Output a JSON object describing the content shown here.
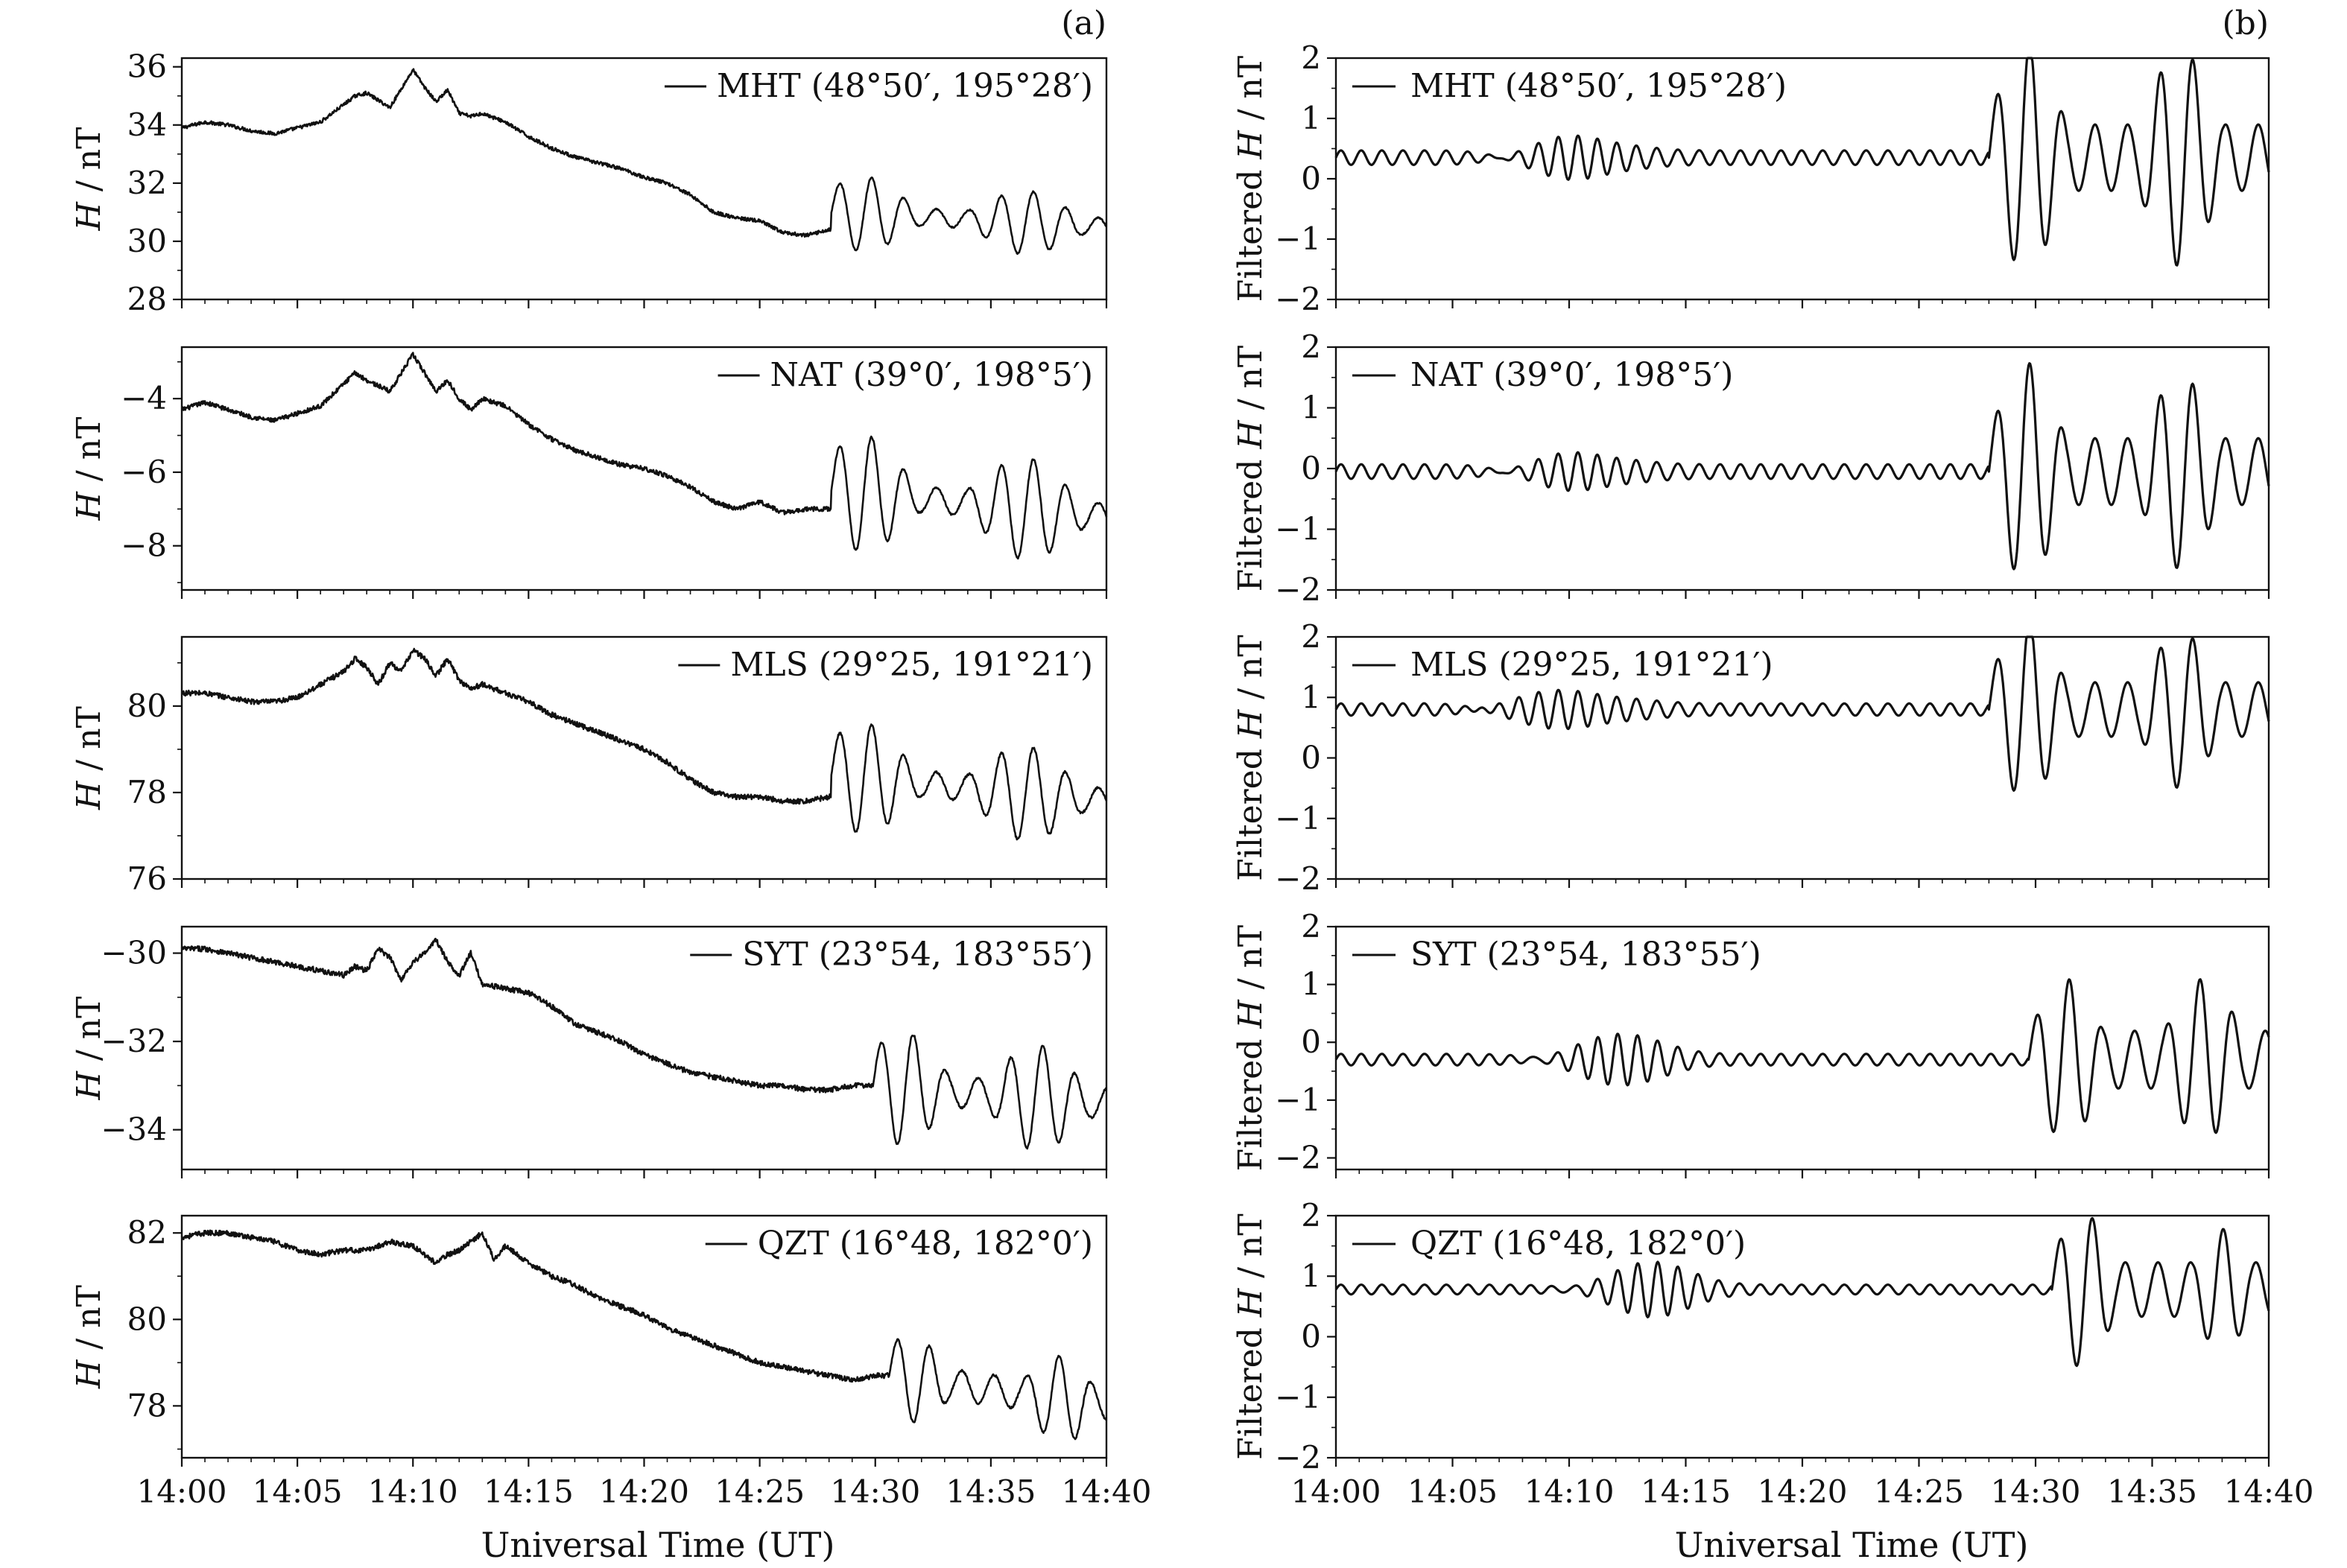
{
  "figure": {
    "panel_a_label": "(a)",
    "panel_b_label": "(b)",
    "x_axis_title": "Universal Time (UT)",
    "x_tick_labels": [
      "14:00",
      "14:05",
      "14:10",
      "14:15",
      "14:20",
      "14:25",
      "14:30",
      "14:35",
      "14:40"
    ]
  },
  "chart_data": [
    {
      "type": "line",
      "panel": "a",
      "station": "MHT",
      "legend": "MHT (48°50′, 195°28′)",
      "ylabel_italic": "H",
      "ylabel_rest": " / nT",
      "xlim": [
        0,
        40
      ],
      "ylim": [
        28,
        36.3
      ],
      "yticks": [
        28,
        30,
        32,
        34,
        36
      ],
      "ytick_labels": [
        "28",
        "30",
        "32",
        "34",
        "36"
      ],
      "x": [
        0,
        1,
        2,
        3,
        4,
        5,
        6,
        7,
        7.5,
        8,
        9,
        10,
        10.5,
        11,
        11.5,
        12,
        12.5,
        13,
        14,
        15,
        16,
        17,
        18,
        19,
        20,
        21,
        22,
        23,
        24,
        25,
        26,
        27,
        28
      ],
      "y": [
        33.9,
        34.1,
        34.0,
        33.8,
        33.7,
        33.9,
        34.1,
        34.7,
        35.0,
        35.1,
        34.6,
        35.9,
        35.3,
        34.8,
        35.2,
        34.4,
        34.3,
        34.4,
        34.1,
        33.6,
        33.2,
        32.9,
        32.7,
        32.5,
        32.2,
        32.0,
        31.6,
        31.0,
        30.8,
        30.7,
        30.3,
        30.2,
        30.4
      ],
      "osc": {
        "start": 28.1,
        "period": 1.4,
        "base_start": 31.0,
        "base_end": 30.5,
        "bursts": [
          {
            "center": 29.5,
            "width": 2.0,
            "amp": 1.3
          },
          {
            "center": 36.5,
            "width": 2.2,
            "amp": 1.1
          }
        ],
        "min_amp": 0.3
      }
    },
    {
      "type": "line",
      "panel": "a",
      "station": "NAT",
      "legend": "NAT (39°0′, 198°5′)",
      "ylabel_italic": "H",
      "ylabel_rest": " / nT",
      "xlim": [
        0,
        40
      ],
      "ylim": [
        -9.2,
        -2.6
      ],
      "yticks": [
        -8,
        -6,
        -4
      ],
      "ytick_labels": [
        "−8",
        "−6",
        "−4"
      ],
      "x": [
        0,
        1,
        2,
        3,
        4,
        5,
        6,
        7,
        7.5,
        8,
        9,
        10,
        10.5,
        11,
        11.5,
        12,
        12.5,
        13,
        14,
        15,
        16,
        17,
        18,
        19,
        20,
        21,
        22,
        23,
        24,
        25,
        26,
        27,
        28
      ],
      "y": [
        -4.3,
        -4.1,
        -4.3,
        -4.5,
        -4.6,
        -4.4,
        -4.2,
        -3.6,
        -3.3,
        -3.5,
        -3.8,
        -2.8,
        -3.3,
        -3.8,
        -3.5,
        -4.0,
        -4.3,
        -4.0,
        -4.2,
        -4.7,
        -5.1,
        -5.4,
        -5.6,
        -5.8,
        -5.9,
        -6.1,
        -6.4,
        -6.8,
        -7.0,
        -6.8,
        -7.1,
        -7.0,
        -7.0
      ],
      "osc": {
        "start": 28.1,
        "period": 1.4,
        "base_start": -6.5,
        "base_end": -7.2,
        "bursts": [
          {
            "center": 29.5,
            "width": 2.0,
            "amp": 1.6
          },
          {
            "center": 36.5,
            "width": 2.2,
            "amp": 1.4
          }
        ],
        "min_amp": 0.35
      }
    },
    {
      "type": "line",
      "panel": "a",
      "station": "MLS",
      "legend": "MLS (29°25, 191°21′)",
      "ylabel_italic": "H",
      "ylabel_rest": " / nT",
      "xlim": [
        0,
        40
      ],
      "ylim": [
        76,
        81.6
      ],
      "yticks": [
        76,
        78,
        80
      ],
      "ytick_labels": [
        "76",
        "78",
        "80"
      ],
      "x": [
        0,
        1,
        2,
        3,
        4,
        5,
        6,
        7,
        7.5,
        8,
        8.5,
        9,
        9.5,
        10,
        10.5,
        11,
        11.5,
        12,
        12.5,
        13,
        14,
        15,
        16,
        17,
        18,
        19,
        20,
        21,
        22,
        23,
        24,
        25,
        26,
        27,
        28
      ],
      "y": [
        80.3,
        80.3,
        80.2,
        80.1,
        80.1,
        80.2,
        80.5,
        80.8,
        81.1,
        80.9,
        80.5,
        81.0,
        80.8,
        81.3,
        81.1,
        80.7,
        81.1,
        80.6,
        80.4,
        80.5,
        80.3,
        80.1,
        79.8,
        79.6,
        79.4,
        79.2,
        79.0,
        78.7,
        78.3,
        78.0,
        77.9,
        77.9,
        77.8,
        77.8,
        77.9
      ],
      "osc": {
        "start": 28.1,
        "period": 1.4,
        "base_start": 78.4,
        "base_end": 77.8,
        "bursts": [
          {
            "center": 29.5,
            "width": 2.0,
            "amp": 1.3
          },
          {
            "center": 36.5,
            "width": 2.2,
            "amp": 1.1
          }
        ],
        "min_amp": 0.3
      }
    },
    {
      "type": "line",
      "panel": "a",
      "station": "SYT",
      "legend": "SYT (23°54, 183°55′)",
      "ylabel_italic": "H",
      "ylabel_rest": " / nT",
      "xlim": [
        0,
        40
      ],
      "ylim": [
        -34.9,
        -29.4
      ],
      "yticks": [
        -34,
        -32,
        -30
      ],
      "ytick_labels": [
        "−34",
        "−32",
        "−30"
      ],
      "x": [
        0,
        1,
        2,
        3,
        4,
        5,
        6,
        7,
        7.5,
        8,
        8.5,
        9,
        9.5,
        10,
        10.5,
        11,
        11.5,
        12,
        12.5,
        13,
        14,
        15,
        16,
        17,
        18,
        19,
        20,
        21,
        22,
        23,
        24,
        25,
        26,
        27,
        28,
        29,
        30
      ],
      "y": [
        -29.9,
        -29.9,
        -30.0,
        -30.1,
        -30.2,
        -30.3,
        -30.4,
        -30.5,
        -30.3,
        -30.4,
        -29.9,
        -30.1,
        -30.6,
        -30.2,
        -30.0,
        -29.7,
        -30.2,
        -30.5,
        -30.0,
        -30.7,
        -30.8,
        -30.9,
        -31.2,
        -31.6,
        -31.8,
        -32.0,
        -32.3,
        -32.5,
        -32.7,
        -32.8,
        -32.9,
        -33.0,
        -33.0,
        -33.1,
        -33.1,
        -33.0,
        -33.0
      ],
      "osc": {
        "start": 29.9,
        "period": 1.4,
        "base_start": -33.0,
        "base_end": -33.4,
        "bursts": [
          {
            "center": 31.2,
            "width": 1.8,
            "amp": 1.3
          },
          {
            "center": 37.0,
            "width": 2.0,
            "amp": 1.2
          }
        ],
        "min_amp": 0.35
      }
    },
    {
      "type": "line",
      "panel": "a",
      "station": "QZT",
      "legend": "QZT (16°48, 182°0′)",
      "ylabel_italic": "H",
      "ylabel_rest": " / nT",
      "xlim": [
        0,
        40
      ],
      "ylim": [
        76.8,
        82.4
      ],
      "yticks": [
        78,
        80,
        82
      ],
      "ytick_labels": [
        "78",
        "80",
        "82"
      ],
      "x": [
        0,
        1,
        2,
        3,
        4,
        5,
        6,
        7,
        8,
        9,
        10,
        11,
        11.5,
        12,
        12.5,
        13,
        13.5,
        14,
        15,
        16,
        17,
        18,
        19,
        20,
        21,
        22,
        23,
        24,
        25,
        26,
        27,
        28,
        29,
        30
      ],
      "y": [
        81.9,
        82.0,
        82.0,
        81.9,
        81.8,
        81.6,
        81.5,
        81.6,
        81.6,
        81.8,
        81.7,
        81.3,
        81.5,
        81.6,
        81.8,
        82.0,
        81.4,
        81.7,
        81.3,
        81.0,
        80.8,
        80.5,
        80.3,
        80.1,
        79.8,
        79.6,
        79.4,
        79.2,
        79.0,
        78.9,
        78.8,
        78.7,
        78.6,
        78.7
      ],
      "osc": {
        "start": 30.6,
        "period": 1.4,
        "base_start": 78.7,
        "base_end": 78.0,
        "bursts": [
          {
            "center": 31.6,
            "width": 1.6,
            "amp": 1.0
          },
          {
            "center": 38.0,
            "width": 1.6,
            "amp": 1.0
          }
        ],
        "min_amp": 0.35
      }
    },
    {
      "type": "line",
      "panel": "b",
      "station": "MHT",
      "legend": "MHT (48°50′, 195°28′)",
      "ylabel_plain": "Filtered ",
      "ylabel_italic": "H",
      "ylabel_rest": " / nT",
      "xlim": [
        0,
        40
      ],
      "ylim": [
        -2,
        2
      ],
      "yticks": [
        -2,
        -1,
        0,
        1,
        2
      ],
      "ytick_labels": [
        "−2",
        "−1",
        "0",
        "1",
        "2"
      ],
      "base": 0.35,
      "quiet_amp": 0.12,
      "events": [
        {
          "x": 10.0,
          "amp": 0.45,
          "width": 2.5
        }
      ],
      "osc": {
        "start": 28.0,
        "period": 1.4,
        "bursts": [
          {
            "center": 29.6,
            "width": 1.6,
            "amp": 1.9
          },
          {
            "center": 36.2,
            "width": 1.7,
            "amp": 1.8
          }
        ],
        "min_amp": 0.55
      }
    },
    {
      "type": "line",
      "panel": "b",
      "station": "NAT",
      "legend": "NAT (39°0′, 198°5′)",
      "ylabel_plain": "Filtered ",
      "ylabel_italic": "H",
      "ylabel_rest": " / nT",
      "xlim": [
        0,
        40
      ],
      "ylim": [
        -2,
        2
      ],
      "yticks": [
        -2,
        -1,
        0,
        1,
        2
      ],
      "ytick_labels": [
        "−2",
        "−1",
        "0",
        "1",
        "2"
      ],
      "base": -0.05,
      "quiet_amp": 0.12,
      "events": [
        {
          "x": 10.0,
          "amp": 0.4,
          "width": 2.5
        }
      ],
      "osc": {
        "start": 28.0,
        "period": 1.4,
        "bursts": [
          {
            "center": 29.6,
            "width": 1.6,
            "amp": 1.8
          },
          {
            "center": 36.2,
            "width": 1.7,
            "amp": 1.6
          }
        ],
        "min_amp": 0.55
      }
    },
    {
      "type": "line",
      "panel": "b",
      "station": "MLS",
      "legend": "MLS (29°25, 191°21′)",
      "ylabel_plain": "Filtered ",
      "ylabel_italic": "H",
      "ylabel_rest": " / nT",
      "xlim": [
        0,
        40
      ],
      "ylim": [
        -2,
        2
      ],
      "yticks": [
        -2,
        -1,
        0,
        1,
        2
      ],
      "ytick_labels": [
        "−2",
        "−1",
        "0",
        "1",
        "2"
      ],
      "base": 0.8,
      "quiet_amp": 0.1,
      "events": [
        {
          "x": 9.5,
          "amp": 0.4,
          "width": 3.0
        }
      ],
      "osc": {
        "start": 28.0,
        "period": 1.4,
        "bursts": [
          {
            "center": 29.6,
            "width": 1.6,
            "amp": 1.5
          },
          {
            "center": 36.2,
            "width": 1.7,
            "amp": 1.3
          }
        ],
        "min_amp": 0.45
      }
    },
    {
      "type": "line",
      "panel": "b",
      "station": "SYT",
      "legend": "SYT (23°54, 183°55′)",
      "ylabel_plain": "Filtered ",
      "ylabel_italic": "H",
      "ylabel_rest": " / nT",
      "xlim": [
        0,
        40
      ],
      "ylim": [
        -2.2,
        2
      ],
      "yticks": [
        -2,
        -1,
        0,
        1,
        2
      ],
      "ytick_labels": [
        "−2",
        "−1",
        "0",
        "1",
        "2"
      ],
      "base": -0.3,
      "quiet_amp": 0.1,
      "events": [
        {
          "x": 11.8,
          "amp": 0.45,
          "width": 2.5
        }
      ],
      "osc": {
        "start": 29.7,
        "period": 1.4,
        "bursts": [
          {
            "center": 31.3,
            "width": 1.6,
            "amp": 1.4
          },
          {
            "center": 37.2,
            "width": 1.7,
            "amp": 1.4
          }
        ],
        "min_amp": 0.5
      }
    },
    {
      "type": "line",
      "panel": "b",
      "station": "QZT",
      "legend": "QZT (16°48, 182°0′)",
      "ylabel_plain": "Filtered ",
      "ylabel_italic": "H",
      "ylabel_rest": " / nT",
      "xlim": [
        0,
        40
      ],
      "ylim": [
        -2,
        2
      ],
      "yticks": [
        -2,
        -1,
        0,
        1,
        2
      ],
      "ytick_labels": [
        "−2",
        "−1",
        "0",
        "1",
        "2"
      ],
      "base": 0.78,
      "quiet_amp": 0.08,
      "events": [
        {
          "x": 13.3,
          "amp": 0.4,
          "width": 2.5
        }
      ],
      "osc": {
        "start": 30.7,
        "period": 1.4,
        "bursts": [
          {
            "center": 32.0,
            "width": 1.4,
            "amp": 1.3
          },
          {
            "center": 38.0,
            "width": 1.4,
            "amp": 1.0
          }
        ],
        "min_amp": 0.45
      }
    }
  ]
}
